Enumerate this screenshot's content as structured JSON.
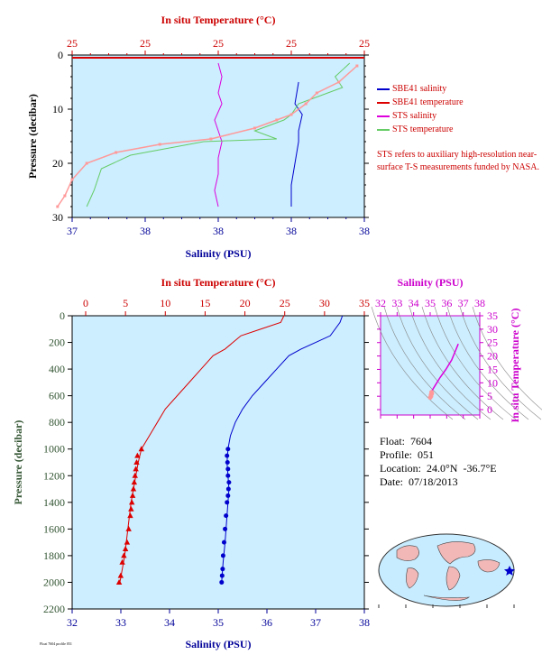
{
  "colors": {
    "panel_bg": "#cceeff",
    "salinity_blue": "#0000cc",
    "temperature_red": "#dd0000",
    "sts_salinity": "#dd00dd",
    "sts_temperature": "#66cc66",
    "sts_temperature_points": "#ff9999",
    "axis_red": "#cc0000",
    "axis_blue": "#000099",
    "axis_green": "#335533",
    "axis_magenta": "#cc00cc"
  },
  "info": {
    "float": "Float:  7604",
    "profile": "Profile:  051",
    "location": "Location:  24.0°N  -36.7°E",
    "date": "Date:  07/18/2013"
  },
  "legend": {
    "items": [
      {
        "label": "SBE41 salinity",
        "color": "#0000cc"
      },
      {
        "label": "SBE41 temperature",
        "color": "#dd0000"
      },
      {
        "label": "STS salinity",
        "color": "#dd00dd"
      },
      {
        "label": "STS temperature",
        "color": "#66cc66"
      }
    ],
    "note": "STS refers to auxiliary high-resolution near-surface T-S measurements funded by NASA."
  },
  "footer_text": "Float 7604 profile 051",
  "chart_data": [
    {
      "type": "line",
      "panel": "near-surface",
      "top_xlabel": "In situ Temperature (°C)",
      "bottom_xlabel": "Salinity (PSU)",
      "ylabel": "Pressure (decibar)",
      "top_ticks": [
        "25",
        "25",
        "25",
        "25",
        "25"
      ],
      "bottom_ticks": [
        "37",
        "38",
        "38",
        "38",
        "38"
      ],
      "y_ticks": [
        "0",
        "10",
        "20",
        "30"
      ],
      "temp_xlim": [
        24.8,
        25.6
      ],
      "sal_xlim": [
        37.0,
        37.8
      ],
      "ylim": [
        30,
        0
      ],
      "series": [
        {
          "name": "SBE41 salinity",
          "color": "#0000cc",
          "x": [
            37.62,
            37.61,
            37.63,
            37.62,
            37.62,
            37.61,
            37.6,
            37.6
          ],
          "y": [
            5,
            9,
            11,
            14,
            16,
            20,
            24,
            28
          ]
        },
        {
          "name": "SBE41 temperature",
          "color": "#dd0000",
          "x": [
            25.6,
            24.8
          ],
          "y": [
            0.5,
            0.5
          ]
        },
        {
          "name": "STS salinity",
          "color": "#dd00dd",
          "x": [
            37.4,
            37.41,
            37.4,
            37.41,
            37.39,
            37.4,
            37.41,
            37.4,
            37.4,
            37.39,
            37.4
          ],
          "y": [
            1.5,
            4,
            7,
            9,
            12,
            14,
            16,
            19,
            22,
            25,
            28
          ]
        },
        {
          "name": "STS temperature",
          "color": "#66cc66",
          "x": [
            25.56,
            25.52,
            25.54,
            25.46,
            25.42,
            25.4,
            25.38,
            25.3,
            25.36,
            25.16,
            25.08,
            24.96,
            24.88,
            24.86,
            24.84
          ],
          "y": [
            1.5,
            4,
            6,
            8,
            9,
            11,
            12,
            14,
            15.5,
            16,
            17,
            18.5,
            21,
            25,
            28
          ]
        },
        {
          "name": "",
          "color": "#ff9999",
          "points_only": true,
          "x": [
            25.58,
            25.53,
            25.47,
            25.44,
            25.4,
            25.36,
            25.3,
            25.18,
            25.04,
            24.92,
            24.84,
            24.8,
            24.78,
            24.76
          ],
          "y": [
            2,
            5,
            7,
            9,
            11,
            12,
            13.5,
            15.5,
            16.5,
            18,
            20,
            23,
            26,
            28
          ]
        }
      ]
    },
    {
      "type": "line",
      "panel": "full-profile",
      "top_xlabel": "In situ Temperature (°C)",
      "bottom_xlabel": "Salinity (PSU)",
      "ylabel": "Pressure (decibar)",
      "top_ticks": [
        "0",
        "5",
        "10",
        "15",
        "20",
        "25",
        "30",
        "35"
      ],
      "bottom_ticks": [
        "32",
        "33",
        "34",
        "35",
        "36",
        "37",
        "38"
      ],
      "y_ticks": [
        "0",
        "200",
        "400",
        "600",
        "800",
        "1000",
        "1200",
        "1400",
        "1600",
        "1800",
        "2000",
        "2200"
      ],
      "temp_xlim": [
        0,
        35
      ],
      "sal_xlim": [
        32,
        38
      ],
      "ylim": [
        2200,
        0
      ],
      "series": [
        {
          "name": "SBE41 salinity",
          "color": "#0000cc",
          "x": [
            37.55,
            37.5,
            37.3,
            37.0,
            36.7,
            36.45,
            36.2,
            35.95,
            35.7,
            35.5,
            35.35,
            35.25,
            35.2,
            35.18,
            35.2,
            35.22,
            35.2,
            35.18,
            35.14,
            35.1,
            35.07
          ],
          "y": [
            0,
            50,
            150,
            200,
            250,
            300,
            400,
            500,
            600,
            700,
            800,
            900,
            1000,
            1100,
            1200,
            1300,
            1400,
            1500,
            1700,
            1850,
            2000
          ]
        },
        {
          "name": "SBE41 temperature",
          "color": "#dd0000",
          "x": [
            24.9,
            24.5,
            22.0,
            19.5,
            18.5,
            17.5,
            16.0,
            14.5,
            13.0,
            11.5,
            10.0,
            9.0,
            8.0,
            7.0,
            6.6,
            6.3,
            6.0,
            5.7,
            5.3,
            4.9,
            4.3
          ],
          "y": [
            0,
            50,
            100,
            150,
            200,
            250,
            300,
            400,
            500,
            600,
            700,
            800,
            900,
            1000,
            1100,
            1200,
            1300,
            1400,
            1600,
            1800,
            2000
          ]
        }
      ],
      "markers": {
        "salinity": {
          "color": "#0000cc",
          "shape": "circle",
          "x": [
            35.2,
            35.18,
            35.19,
            35.2,
            35.2,
            35.22,
            35.21,
            35.2,
            35.18,
            35.16,
            35.14,
            35.12,
            35.1,
            35.09,
            35.08,
            35.07
          ],
          "y": [
            1000,
            1050,
            1100,
            1150,
            1200,
            1250,
            1300,
            1350,
            1400,
            1500,
            1600,
            1700,
            1800,
            1900,
            1950,
            2000
          ]
        },
        "temperature": {
          "color": "#dd0000",
          "shape": "triangle",
          "x": [
            7.0,
            6.5,
            6.4,
            6.3,
            6.2,
            6.1,
            6.0,
            5.9,
            5.8,
            5.7,
            5.6,
            5.4,
            5.2,
            5.0,
            4.8,
            4.6,
            4.4,
            4.2
          ],
          "y": [
            1000,
            1050,
            1100,
            1150,
            1200,
            1250,
            1300,
            1350,
            1400,
            1450,
            1500,
            1600,
            1700,
            1750,
            1800,
            1850,
            1950,
            2000
          ]
        }
      }
    },
    {
      "type": "scatter",
      "panel": "T-S diagram",
      "top_xlabel": "Salinity (PSU)",
      "ylabel": "In situ Temperature (°C)",
      "x_ticks": [
        "32",
        "33",
        "34",
        "35",
        "36",
        "37",
        "38"
      ],
      "y_ticks": [
        "0",
        "5",
        "10",
        "15",
        "20",
        "25",
        "30",
        "35"
      ],
      "xlim": [
        32,
        38
      ],
      "ylim": [
        -2,
        35
      ],
      "series": [
        {
          "name": "",
          "color": "#dd00dd",
          "x": [
            35.0,
            35.05,
            35.1,
            35.3,
            35.6,
            35.95,
            36.3,
            36.7
          ],
          "y": [
            4.5,
            5.5,
            7.0,
            9.0,
            12.0,
            15.0,
            18.5,
            24.5
          ]
        }
      ],
      "points": {
        "color": "#ff9999",
        "x": [
          35.0,
          35.05,
          35.1,
          35.08,
          35.05
        ],
        "y": [
          4.5,
          5.0,
          6.0,
          6.5,
          5.5
        ]
      }
    }
  ]
}
